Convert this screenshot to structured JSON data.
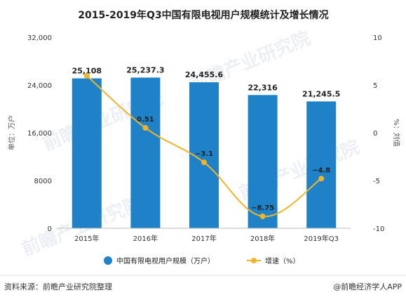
{
  "chart_data": {
    "type": "bar",
    "title": "2015-2019年Q3中国有限电视用户规模统计及增长情况",
    "categories": [
      "2015年",
      "2016年",
      "2017年",
      "2018年",
      "2019年Q3"
    ],
    "series": [
      {
        "name": "中国有限电视用户规模（万户）",
        "type": "bar",
        "axis": "left",
        "values": [
          25108,
          25237.3,
          24455.6,
          22316,
          21245.5
        ],
        "labels": [
          "25,108",
          "25,237.3",
          "24,455.6",
          "22,316",
          "21,245.5"
        ],
        "color": "#1f82c8"
      },
      {
        "name": "增速（%）",
        "type": "line",
        "axis": "right",
        "values": [
          5.97,
          0.51,
          -3.1,
          -8.75,
          -4.8
        ],
        "labels": [
          "",
          "0.51",
          "−3.1",
          "−8.75",
          "−4.8"
        ],
        "color": "#f0b428"
      }
    ],
    "left_axis": {
      "label": "单位：万户",
      "ylim": [
        0,
        32000
      ],
      "ticks": [
        0,
        8000,
        16000,
        24000,
        32000
      ],
      "tick_labels": [
        "0",
        "8000",
        "16,000",
        "24,000",
        "32,000"
      ]
    },
    "right_axis": {
      "label": "%：刘值",
      "ylim": [
        -10,
        10
      ],
      "ticks": [
        -10,
        -5,
        0,
        5,
        10
      ],
      "tick_labels": [
        "-10",
        "-5",
        "0",
        "5",
        "10"
      ]
    },
    "legend": {
      "position": "bottom"
    },
    "grid": false
  },
  "footer": {
    "source": "资料来源：前瞻产业研究院整理",
    "brand": "@前瞻经济学人APP"
  },
  "watermark": {
    "text": "前瞻产业研究院",
    "color": "#c9d3dd"
  }
}
